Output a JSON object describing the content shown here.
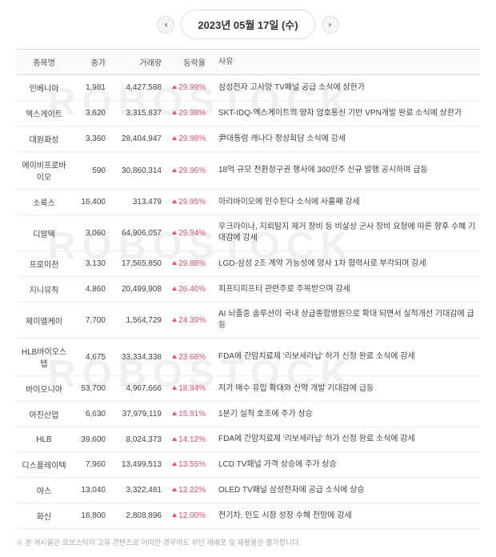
{
  "date_label": "2023년 05월 17일 (수)",
  "watermark_text": "ROBOSTOCK",
  "headers": {
    "name": "종목명",
    "price": "종가",
    "volume": "거래량",
    "change": "등락율",
    "reason": "사유"
  },
  "rows": [
    {
      "name": "인베니아",
      "price": "1,981",
      "volume": "4,427,588",
      "change": "29.99%",
      "reason": "삼성전자 고사양 TV패널 공급 소식에 상한가"
    },
    {
      "name": "엑스게이트",
      "price": "3,620",
      "volume": "3,315,837",
      "change": "29.98%",
      "reason": "SKT-IDQ-엑스게이트의 양자 암호통신 기반 VPN개발 완료 소식에 상한가"
    },
    {
      "name": "대원화성",
      "price": "3,360",
      "volume": "28,404,947",
      "change": "29.98%",
      "reason": "尹대통령 캐나다 정상회담 소식에 강세"
    },
    {
      "name": "에이비프로바이오",
      "price": "590",
      "volume": "30,860,314",
      "change": "29.96%",
      "reason": "18억 규모 전환청구권 행사에 360만주 신규 발행 공시하며 급등"
    },
    {
      "name": "소룩스",
      "price": "16,400",
      "volume": "313,479",
      "change": "29.95%",
      "reason": "아리바이오에 인수된다 소식에 사흘째 강세"
    },
    {
      "name": "디알텍",
      "price": "3,060",
      "volume": "64,906,057",
      "change": "29.94%",
      "reason": "우크라이나, 지뢰탐지 제거 장비 등 비살상 군사 장비 요청에 따른 향후 수혜 기대감에 강세"
    },
    {
      "name": "프로이천",
      "price": "3,130",
      "volume": "17,565,850",
      "change": "29.88%",
      "reason": "LGD-삼성 2조 계약 가능성에 양사 1차 협력사로 부각되며 강세"
    },
    {
      "name": "지니뮤직",
      "price": "4,860",
      "volume": "20,499,908",
      "change": "26.40%",
      "reason": "피프티피프티 관련주로 주목받으며 강세"
    },
    {
      "name": "제이엘케이",
      "price": "7,700",
      "volume": "1,564,729",
      "change": "24.39%",
      "reason": "AI 뇌졸중 솔루션이 국내 상급종합병원으로 확대 되면서 실적개선 기대감에 급등"
    },
    {
      "name": "HLB바이오스텝",
      "price": "4,675",
      "volume": "33,334,338",
      "change": "23.68%",
      "reason": "FDA에 간암치료제 '리보세라닙' 허가 신청 완료 소식에 강세"
    },
    {
      "name": "바이오니아",
      "price": "53,700",
      "volume": "4,967,666",
      "change": "18.94%",
      "reason": "저가 매수 유입 확대와 신약 개발 기대감에 급등"
    },
    {
      "name": "아진산업",
      "price": "6,630",
      "volume": "37,979,119",
      "change": "15.91%",
      "reason": "1분기 실적 호조에 주가 상승"
    },
    {
      "name": "HLB",
      "price": "39,600",
      "volume": "8,024,373",
      "change": "14.12%",
      "reason": "FDA에 간암치료제 '리보세라닙' 허가 신청 완료 소식에 강세"
    },
    {
      "name": "디스플레이텍",
      "price": "7,960",
      "volume": "13,499,513",
      "change": "13.55%",
      "reason": "LCD TV패널 가격 상승에 주가 상승"
    },
    {
      "name": "야스",
      "price": "13,040",
      "volume": "3,322,481",
      "change": "12.22%",
      "reason": "OLED TV패널 삼성전자에 공급 소식에 상승"
    },
    {
      "name": "화신",
      "price": "16,800",
      "volume": "2,808,896",
      "change": "12.00%",
      "reason": "전기차, 인도 시장 성장 수혜 전망에 강세"
    }
  ],
  "footnote": "※ 본 게시물은 로보스탁의 고유 콘텐츠로 어떠한 경우라도 무단 재배포 및 재활용은 불가합니다.",
  "colors": {
    "up": "#e84e6a",
    "border": "#eeeeee",
    "header_bg": "#fafafa"
  }
}
